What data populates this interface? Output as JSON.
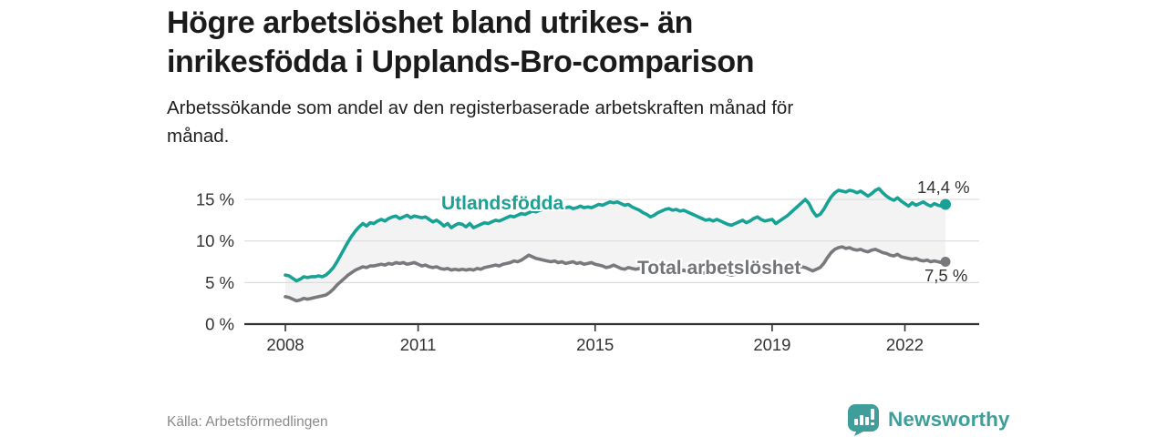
{
  "header": {
    "title_lines": [
      "Högre arbetslöshet bland utrikes- än",
      "inrikesfödda i Upplands-Bro-comparison"
    ],
    "subtitle_lines": [
      "Arbetssökande som andel av den registerbaserade arbetskraften månad för",
      "månad."
    ]
  },
  "footer": {
    "source": "Källa: Arbetsförmedlingen",
    "brand": "Newsworthy"
  },
  "colors": {
    "teal_line": "#18a296",
    "gray_line": "#78797c",
    "fill_between": "#f3f3f3",
    "gridline": "#dcdcdc",
    "axis": "#333333",
    "axis_text": "#333333",
    "brand_teal": "#3f9e99"
  },
  "chart_data": {
    "type": "line",
    "title": "Högre arbetslöshet bland utrikes- än inrikesfödda i Upplands-Bro-comparison",
    "subtitle": "Arbetssökande som andel av den registerbaserade arbetskraften månad för månad.",
    "x_unit": "month",
    "x_start_year": 2008,
    "x_end": "2022-12",
    "x_tick_labels": [
      "2008",
      "2011",
      "2015",
      "2019",
      "2022"
    ],
    "y_ticks": [
      {
        "value": 0,
        "label": "0 %"
      },
      {
        "value": 5,
        "label": "5 %"
      },
      {
        "value": 10,
        "label": "10 %"
      },
      {
        "value": 15,
        "label": "15 %"
      }
    ],
    "ylim": [
      0,
      17
    ],
    "grid": "horizontal",
    "legend_position": "inline-labels",
    "series": [
      {
        "name": "Utlandsfödda",
        "color": "#18a296",
        "end_label": "14,4 %",
        "end_value": 14.4,
        "values": [
          5.9,
          5.8,
          5.5,
          5.2,
          5.4,
          5.7,
          5.6,
          5.7,
          5.7,
          5.8,
          5.7,
          5.9,
          6.3,
          6.8,
          7.5,
          8.3,
          9.1,
          9.9,
          10.6,
          11.2,
          11.7,
          12.1,
          11.8,
          12.2,
          12.1,
          12.4,
          12.6,
          12.4,
          12.7,
          12.9,
          13.0,
          12.7,
          12.9,
          13.1,
          12.8,
          13.0,
          12.9,
          12.8,
          12.9,
          12.6,
          12.3,
          12.5,
          12.2,
          11.8,
          12.1,
          11.6,
          11.9,
          12.1,
          12.0,
          11.7,
          12.1,
          11.6,
          11.8,
          12.0,
          12.2,
          12.1,
          12.3,
          12.5,
          12.4,
          12.6,
          12.8,
          13.0,
          12.9,
          13.1,
          13.3,
          13.2,
          13.4,
          13.6,
          13.5,
          13.7,
          13.8,
          14.0,
          14.1,
          13.9,
          14.1,
          13.8,
          14.0,
          14.1,
          13.9,
          14.0,
          14.2,
          14.0,
          14.1,
          14.0,
          14.2,
          14.4,
          14.3,
          14.5,
          14.7,
          14.6,
          14.7,
          14.5,
          14.3,
          14.4,
          14.1,
          13.9,
          13.7,
          13.4,
          13.2,
          12.9,
          13.1,
          13.4,
          13.6,
          13.8,
          13.9,
          13.7,
          13.8,
          13.6,
          13.7,
          13.5,
          13.3,
          13.1,
          12.9,
          12.7,
          12.5,
          12.6,
          12.4,
          12.6,
          12.4,
          12.2,
          12.0,
          11.9,
          12.1,
          12.3,
          12.5,
          12.2,
          12.4,
          12.7,
          12.9,
          12.6,
          12.4,
          12.5,
          12.6,
          12.1,
          12.4,
          12.7,
          13.0,
          13.4,
          13.8,
          14.2,
          14.6,
          15.0,
          14.5,
          13.6,
          13.0,
          13.2,
          13.8,
          14.6,
          15.3,
          15.8,
          16.1,
          16.0,
          15.9,
          16.1,
          16.0,
          15.8,
          16.0,
          15.7,
          15.4,
          15.7,
          16.1,
          16.3,
          15.8,
          15.4,
          15.1,
          14.9,
          15.2,
          14.8,
          14.5,
          14.2,
          14.6,
          14.3,
          14.5,
          14.7,
          14.4,
          14.2,
          14.5,
          14.3,
          14.2,
          14.4
        ]
      },
      {
        "name": "Total arbetslöshet",
        "color": "#78797c",
        "end_label": "7,5 %",
        "end_value": 7.5,
        "values": [
          3.3,
          3.2,
          3.0,
          2.8,
          2.9,
          3.1,
          3.0,
          3.1,
          3.2,
          3.3,
          3.4,
          3.5,
          3.8,
          4.2,
          4.7,
          5.1,
          5.5,
          5.9,
          6.2,
          6.5,
          6.7,
          6.9,
          6.8,
          7.0,
          7.0,
          7.1,
          7.2,
          7.1,
          7.3,
          7.2,
          7.4,
          7.3,
          7.4,
          7.2,
          7.3,
          7.4,
          7.2,
          7.0,
          7.1,
          6.9,
          6.8,
          6.9,
          6.7,
          6.6,
          6.7,
          6.5,
          6.6,
          6.5,
          6.6,
          6.5,
          6.6,
          6.5,
          6.7,
          6.6,
          6.8,
          6.9,
          7.0,
          7.1,
          7.0,
          7.2,
          7.3,
          7.4,
          7.6,
          7.5,
          7.7,
          8.0,
          8.3,
          8.1,
          7.9,
          7.8,
          7.7,
          7.6,
          7.5,
          7.6,
          7.4,
          7.5,
          7.3,
          7.4,
          7.5,
          7.3,
          7.4,
          7.2,
          7.3,
          7.4,
          7.2,
          7.1,
          7.0,
          6.8,
          6.9,
          7.1,
          6.9,
          6.7,
          6.6,
          6.8,
          6.7,
          6.6,
          6.7,
          6.5,
          6.6,
          6.4,
          6.5,
          6.7,
          6.6,
          6.8,
          6.7,
          6.5,
          6.6,
          6.4,
          6.5,
          6.3,
          6.4,
          6.2,
          6.3,
          6.1,
          6.2,
          6.3,
          6.1,
          6.2,
          6.0,
          6.1,
          6.0,
          5.9,
          6.0,
          6.1,
          6.2,
          6.0,
          6.1,
          6.2,
          6.3,
          6.1,
          6.2,
          6.3,
          6.3,
          6.2,
          6.3,
          6.4,
          6.5,
          6.6,
          6.7,
          6.8,
          6.9,
          6.8,
          6.6,
          6.4,
          6.6,
          6.8,
          7.3,
          8.0,
          8.6,
          9.0,
          9.2,
          9.3,
          9.1,
          9.2,
          9.0,
          8.9,
          9.0,
          8.8,
          8.7,
          8.9,
          9.0,
          8.8,
          8.6,
          8.5,
          8.3,
          8.2,
          8.4,
          8.1,
          8.0,
          7.9,
          7.8,
          7.9,
          7.7,
          7.6,
          7.7,
          7.5,
          7.6,
          7.5,
          7.4,
          7.5
        ]
      }
    ]
  }
}
